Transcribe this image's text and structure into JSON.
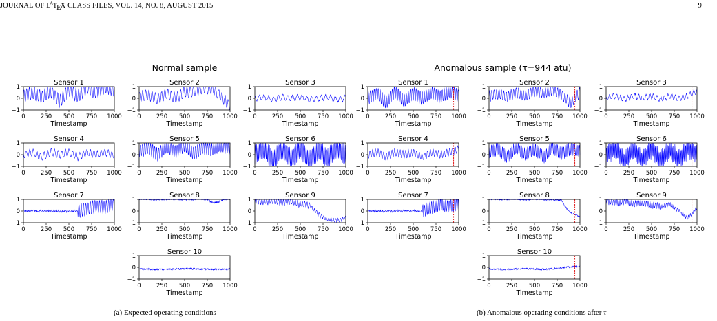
{
  "header": {
    "journal": "JOURNAL OF L",
    "latex_a": "A",
    "latex_t": "T",
    "latex_e": "E",
    "journal_rest": "X CLASS FILES, VOL. 14, NO. 8, AUGUST 2015",
    "page_number": "9"
  },
  "figure": {
    "panels": [
      {
        "id": "a",
        "title": "Normal sample",
        "caption": "(a) Expected operating conditions",
        "caption_tau": "",
        "anomaly_marker": null
      },
      {
        "id": "b",
        "title": "Anomalous sample (τ=944 atu)",
        "caption": "(b) Anomalous operating conditions after ",
        "caption_tau": "τ",
        "anomaly_marker": 944
      }
    ],
    "sensor_names": [
      "Sensor 1",
      "Sensor 2",
      "Sensor 3",
      "Sensor 4",
      "Sensor 5",
      "Sensor 6",
      "Sensor 7",
      "Sensor 8",
      "Sensor 9",
      "Sensor 10"
    ],
    "xlabel": "Timestamp",
    "xticks": [
      "0",
      "250",
      "500",
      "750",
      "1000"
    ],
    "yticks": [
      "1",
      "0",
      "−1"
    ],
    "line_color": "#0000ff",
    "marker_color": "#dd0000"
  },
  "chart_data": [
    {
      "type": "line",
      "title": "Normal sample",
      "xlabel": "Timestamp",
      "xlim": [
        0,
        1000
      ],
      "ylim": [
        -1,
        1
      ],
      "series": [
        {
          "name": "Sensor 1",
          "x": [
            0,
            100,
            200,
            300,
            400,
            500,
            600,
            700,
            800,
            900,
            1000
          ],
          "values": [
            0.2,
            0.5,
            0.1,
            0.6,
            -0.3,
            0.7,
            0.2,
            0.9,
            0.5,
            1.0,
            0.7
          ]
        },
        {
          "name": "Sensor 2",
          "x": [
            0,
            100,
            200,
            300,
            400,
            500,
            600,
            700,
            800,
            900,
            1000
          ],
          "values": [
            0.1,
            0.3,
            -0.1,
            0.4,
            0.0,
            0.5,
            0.6,
            0.9,
            0.8,
            0.2,
            -0.7
          ]
        },
        {
          "name": "Sensor 3",
          "x": [
            0,
            100,
            200,
            300,
            400,
            500,
            600,
            700,
            800,
            900,
            1000
          ],
          "values": [
            0.0,
            0.1,
            -0.1,
            0.1,
            0.0,
            0.1,
            -0.1,
            0.0,
            0.1,
            -0.1,
            0.0
          ]
        },
        {
          "name": "Sensor 4",
          "x": [
            0,
            100,
            200,
            300,
            400,
            500,
            600,
            700,
            800,
            900,
            1000
          ],
          "values": [
            0.0,
            0.2,
            -0.2,
            0.2,
            0.0,
            0.2,
            -0.2,
            0.2,
            0.0,
            0.2,
            -0.1
          ]
        },
        {
          "name": "Sensor 5",
          "x": [
            0,
            100,
            200,
            300,
            400,
            500,
            600,
            700,
            800,
            900,
            1000
          ],
          "values": [
            0.3,
            0.6,
            0.0,
            0.7,
            0.2,
            0.8,
            0.1,
            0.6,
            0.4,
            0.8,
            0.5
          ]
        },
        {
          "name": "Sensor 6",
          "x": [
            0,
            100,
            200,
            300,
            400,
            500,
            600,
            700,
            800,
            900,
            1000
          ],
          "values": [
            0.0,
            0.5,
            -0.5,
            0.5,
            -0.4,
            0.5,
            -0.5,
            0.4,
            -0.3,
            0.5,
            0.0
          ]
        },
        {
          "name": "Sensor 7",
          "x": [
            0,
            100,
            200,
            300,
            400,
            500,
            600,
            700,
            800,
            900,
            1000
          ],
          "values": [
            0.0,
            0.0,
            0.0,
            0.0,
            0.0,
            0.0,
            0.0,
            0.2,
            0.4,
            0.3,
            0.6
          ]
        },
        {
          "name": "Sensor 8",
          "x": [
            0,
            100,
            200,
            300,
            400,
            500,
            600,
            700,
            800,
            900,
            1000
          ],
          "values": [
            1.0,
            1.0,
            1.0,
            1.0,
            1.0,
            1.0,
            1.0,
            1.0,
            0.95,
            0.9,
            0.8
          ]
        },
        {
          "name": "Sensor 9",
          "x": [
            0,
            100,
            200,
            300,
            400,
            500,
            600,
            700,
            800,
            900,
            1000
          ],
          "values": [
            0.9,
            0.8,
            0.9,
            0.7,
            0.8,
            0.6,
            0.5,
            -0.3,
            -0.7,
            -0.8,
            -0.6
          ]
        },
        {
          "name": "Sensor 10",
          "x": [
            0,
            100,
            200,
            300,
            400,
            500,
            600,
            700,
            800,
            900,
            1000
          ],
          "values": [
            -0.15,
            -0.15,
            -0.15,
            -0.15,
            -0.15,
            -0.15,
            -0.15,
            -0.15,
            -0.15,
            -0.15,
            -0.15
          ]
        }
      ]
    },
    {
      "type": "line",
      "title": "Anomalous sample (τ=944 atu)",
      "xlabel": "Timestamp",
      "xlim": [
        0,
        1000
      ],
      "ylim": [
        -1,
        1
      ],
      "annotations": [
        {
          "type": "vline",
          "x": 944
        }
      ],
      "series": [
        {
          "name": "Sensor 1",
          "x": [
            0,
            100,
            200,
            300,
            400,
            500,
            600,
            700,
            800,
            900,
            1000
          ],
          "values": [
            0.0,
            0.4,
            -0.3,
            0.5,
            -0.2,
            0.4,
            0.0,
            0.5,
            0.1,
            0.6,
            0.2
          ]
        },
        {
          "name": "Sensor 2",
          "x": [
            0,
            100,
            200,
            300,
            400,
            500,
            600,
            700,
            800,
            900,
            1000
          ],
          "values": [
            0.2,
            0.4,
            0.1,
            0.5,
            0.2,
            0.6,
            0.4,
            0.7,
            0.3,
            -0.4,
            0.5
          ]
        },
        {
          "name": "Sensor 3",
          "x": [
            0,
            100,
            200,
            300,
            400,
            500,
            600,
            700,
            800,
            900,
            1000
          ],
          "values": [
            0.0,
            0.2,
            -0.1,
            0.2,
            0.0,
            0.2,
            -0.1,
            0.2,
            0.0,
            0.2,
            0.6
          ]
        },
        {
          "name": "Sensor 4",
          "x": [
            0,
            100,
            200,
            300,
            400,
            500,
            600,
            700,
            800,
            900,
            1000
          ],
          "values": [
            0.0,
            0.2,
            -0.2,
            0.2,
            0.0,
            0.2,
            -0.2,
            0.2,
            0.0,
            0.2,
            0.5
          ]
        },
        {
          "name": "Sensor 5",
          "x": [
            0,
            100,
            200,
            300,
            400,
            500,
            600,
            700,
            800,
            900,
            1000
          ],
          "values": [
            0.2,
            0.5,
            -0.2,
            0.6,
            0.0,
            0.5,
            -0.2,
            0.6,
            0.1,
            0.5,
            0.3
          ]
        },
        {
          "name": "Sensor 6",
          "x": [
            0,
            100,
            200,
            300,
            400,
            500,
            600,
            700,
            800,
            900,
            1000
          ],
          "values": [
            0.0,
            0.5,
            -0.5,
            0.5,
            -0.5,
            0.5,
            -0.5,
            0.5,
            -0.4,
            0.5,
            0.0
          ]
        },
        {
          "name": "Sensor 7",
          "x": [
            0,
            100,
            200,
            300,
            400,
            500,
            600,
            700,
            800,
            900,
            1000
          ],
          "values": [
            0.0,
            0.0,
            0.0,
            0.0,
            0.0,
            0.0,
            0.0,
            0.3,
            0.6,
            0.4,
            0.7
          ]
        },
        {
          "name": "Sensor 8",
          "x": [
            0,
            100,
            200,
            300,
            400,
            500,
            600,
            700,
            800,
            900,
            1000
          ],
          "values": [
            1.0,
            1.0,
            1.0,
            1.0,
            1.0,
            1.0,
            1.0,
            1.0,
            0.8,
            0.0,
            -0.7
          ]
        },
        {
          "name": "Sensor 9",
          "x": [
            0,
            100,
            200,
            300,
            400,
            500,
            600,
            700,
            800,
            900,
            1000
          ],
          "values": [
            0.9,
            0.7,
            0.8,
            0.6,
            0.7,
            0.5,
            0.4,
            0.6,
            0.0,
            -0.6,
            0.3
          ]
        },
        {
          "name": "Sensor 10",
          "x": [
            0,
            100,
            200,
            300,
            400,
            500,
            600,
            700,
            800,
            900,
            1000
          ],
          "values": [
            -0.15,
            -0.15,
            -0.15,
            -0.15,
            -0.15,
            -0.15,
            -0.15,
            -0.1,
            -0.05,
            0.0,
            0.1
          ]
        }
      ]
    }
  ]
}
